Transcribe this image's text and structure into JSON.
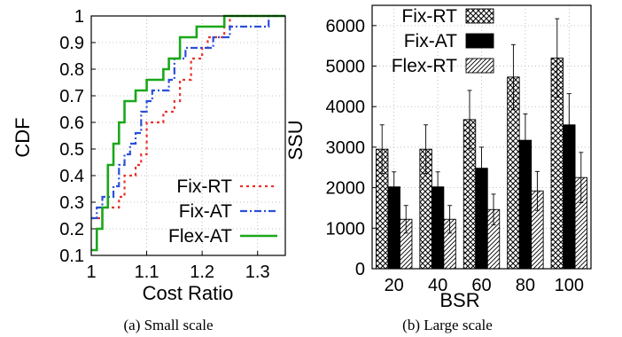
{
  "captions": {
    "left": "(a) Small scale",
    "right": "(b) Large scale"
  },
  "chart_data": [
    {
      "type": "line",
      "xlabel": "Cost Ratio",
      "ylabel": "CDF",
      "xlim": [
        1,
        1.35
      ],
      "ylim": [
        0.1,
        1
      ],
      "x_ticks": [
        "1",
        "1.1",
        "1.2",
        "1.3"
      ],
      "y_ticks": [
        "0.1",
        "0.2",
        "0.3",
        "0.4",
        "0.5",
        "0.6",
        "0.7",
        "0.8",
        "0.9",
        "1"
      ],
      "grid": true,
      "legend_position": "bottom-right",
      "series": [
        {
          "name": "Fix-RT",
          "color": "#e8312a",
          "style": "dotted",
          "step": true,
          "points": [
            [
              1.0,
              0.24
            ],
            [
              1.02,
              0.28
            ],
            [
              1.04,
              0.28
            ],
            [
              1.05,
              0.32
            ],
            [
              1.06,
              0.4
            ],
            [
              1.08,
              0.44
            ],
            [
              1.09,
              0.48
            ],
            [
              1.1,
              0.6
            ],
            [
              1.13,
              0.64
            ],
            [
              1.15,
              0.68
            ],
            [
              1.16,
              0.76
            ],
            [
              1.18,
              0.84
            ],
            [
              1.2,
              0.88
            ],
            [
              1.21,
              0.92
            ],
            [
              1.24,
              0.96
            ],
            [
              1.25,
              1.0
            ],
            [
              1.35,
              1.0
            ]
          ]
        },
        {
          "name": "Fix-AT",
          "color": "#2a4fd8",
          "style": "dashdot",
          "step": true,
          "points": [
            [
              1.0,
              0.24
            ],
            [
              1.01,
              0.28
            ],
            [
              1.02,
              0.32
            ],
            [
              1.04,
              0.36
            ],
            [
              1.05,
              0.44
            ],
            [
              1.06,
              0.48
            ],
            [
              1.07,
              0.52
            ],
            [
              1.08,
              0.56
            ],
            [
              1.09,
              0.64
            ],
            [
              1.1,
              0.68
            ],
            [
              1.11,
              0.72
            ],
            [
              1.14,
              0.76
            ],
            [
              1.15,
              0.84
            ],
            [
              1.17,
              0.88
            ],
            [
              1.22,
              0.92
            ],
            [
              1.25,
              0.96
            ],
            [
              1.32,
              1.0
            ],
            [
              1.35,
              1.0
            ]
          ]
        },
        {
          "name": "Flex-AT",
          "color": "#1aa81a",
          "style": "solid",
          "step": true,
          "points": [
            [
              1.0,
              0.12
            ],
            [
              1.01,
              0.2
            ],
            [
              1.02,
              0.28
            ],
            [
              1.03,
              0.44
            ],
            [
              1.04,
              0.52
            ],
            [
              1.05,
              0.6
            ],
            [
              1.06,
              0.68
            ],
            [
              1.08,
              0.72
            ],
            [
              1.1,
              0.76
            ],
            [
              1.13,
              0.8
            ],
            [
              1.14,
              0.84
            ],
            [
              1.16,
              0.92
            ],
            [
              1.19,
              0.96
            ],
            [
              1.24,
              1.0
            ],
            [
              1.35,
              1.0
            ]
          ]
        }
      ]
    },
    {
      "type": "bar",
      "xlabel": "BSR",
      "ylabel": "SSU",
      "ylim": [
        0,
        6500
      ],
      "y_ticks": [
        "0",
        "1000",
        "2000",
        "3000",
        "4000",
        "5000",
        "6000"
      ],
      "categories": [
        "20",
        "40",
        "60",
        "80",
        "100"
      ],
      "grid": true,
      "legend_position": "top-left",
      "series": [
        {
          "name": "Fix-RT",
          "pattern": "crosshatch",
          "values": [
            2950,
            2950,
            3680,
            4730,
            5200
          ],
          "error": [
            600,
            600,
            720,
            800,
            970
          ]
        },
        {
          "name": "Fix-AT",
          "pattern": "solid",
          "values": [
            2020,
            2020,
            2480,
            3170,
            3550
          ],
          "error": [
            370,
            370,
            520,
            650,
            770
          ]
        },
        {
          "name": "Flex-RT",
          "pattern": "diagonal",
          "values": [
            1220,
            1220,
            1460,
            1920,
            2250
          ],
          "error": [
            340,
            340,
            380,
            480,
            620
          ]
        }
      ]
    }
  ]
}
